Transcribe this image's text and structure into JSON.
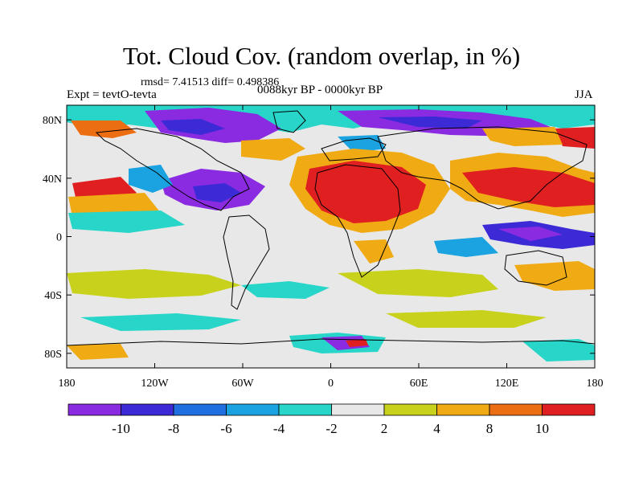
{
  "header": {
    "title": "Tot. Cloud Cov. (random overlap, in %)",
    "stats": "rmsd= 7.41513 diff= 0.498386",
    "experiment": "Expt = tevtO-tevta",
    "period": "0088kyr BP - 0000kyr BP",
    "season": "JJA"
  },
  "axes": {
    "lat_labels": [
      "80N",
      "40N",
      "0",
      "40S",
      "80S"
    ],
    "lon_labels": [
      "180",
      "120W",
      "60W",
      "0",
      "60E",
      "120E",
      "180"
    ]
  },
  "colorbar": {
    "labels": [
      "-10",
      "-8",
      "-6",
      "-4",
      "-2",
      "2",
      "4",
      "8",
      "10"
    ],
    "colors": [
      "#8a2be2",
      "#3b2ad6",
      "#1f6fe0",
      "#1aa3e0",
      "#27d6c8",
      "#e8e8e8",
      "#c8d21c",
      "#f0aa14",
      "#ec6e12",
      "#e02020"
    ]
  },
  "map": {
    "projection": "cylindrical-equidistant",
    "background_color": "#e8e8e8"
  }
}
